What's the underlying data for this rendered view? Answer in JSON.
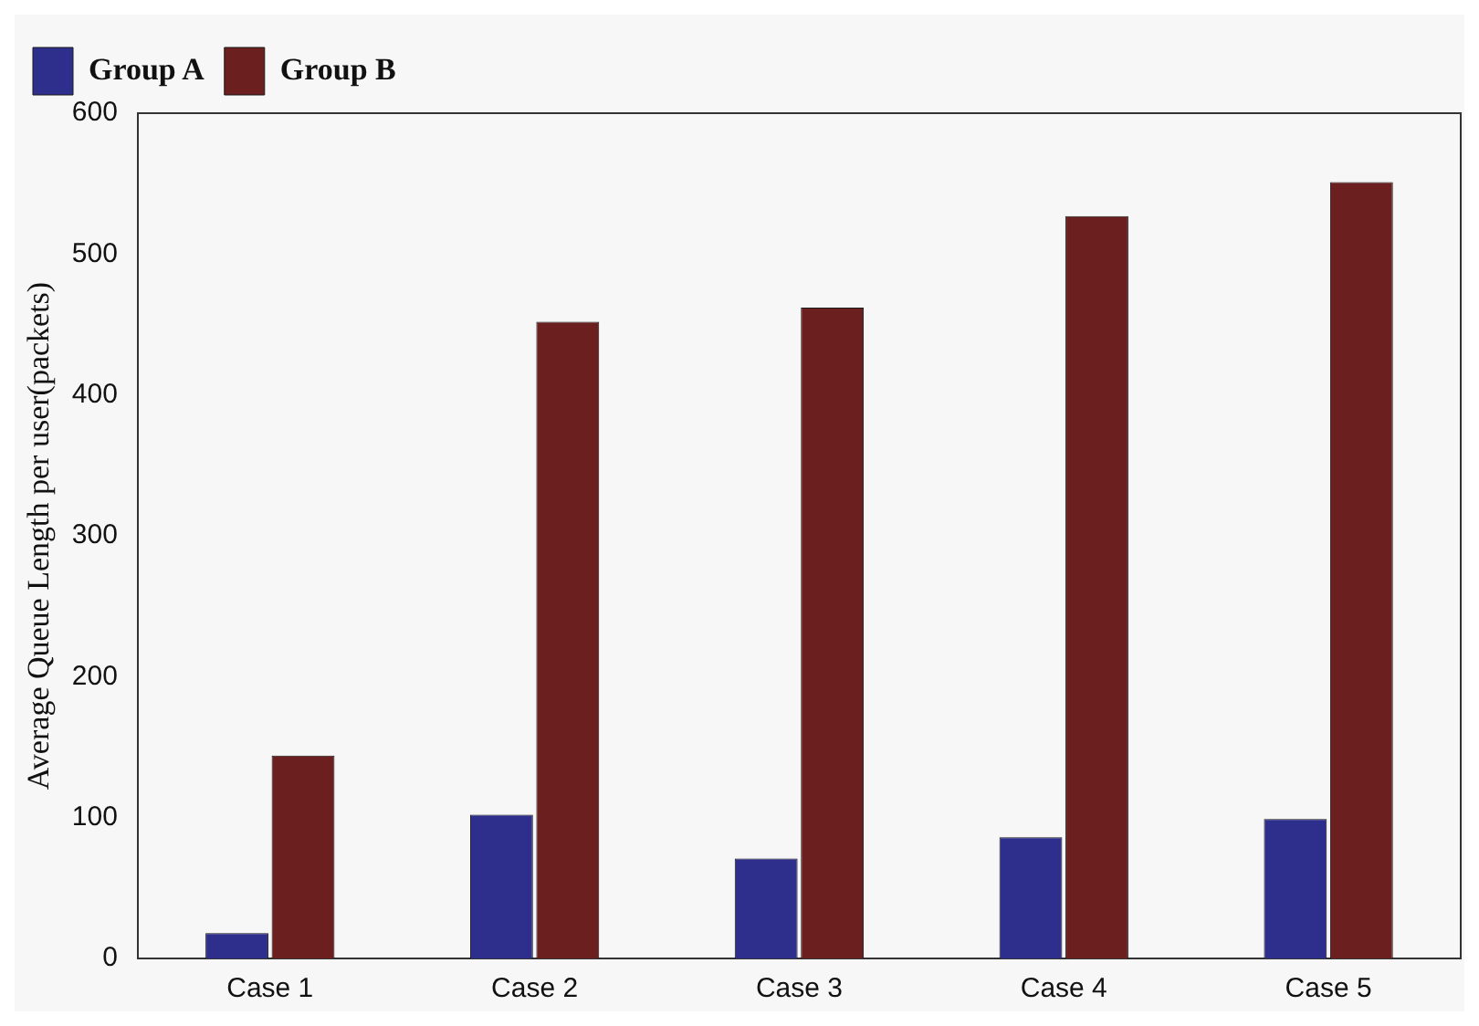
{
  "chart_data": {
    "type": "bar",
    "ylabel": "Average Queue Length per user(packets)",
    "categories": [
      "Case 1",
      "Case 2",
      "Case 3",
      "Case 4",
      "Case 5"
    ],
    "series": [
      {
        "name": "Group A",
        "color": "#2e2e8c",
        "values": [
          18,
          102,
          71,
          86,
          99
        ]
      },
      {
        "name": "Group B",
        "color": "#6b1f1f",
        "values": [
          144,
          452,
          462,
          527,
          551
        ]
      }
    ],
    "ylim": [
      0,
      600
    ],
    "yticks": [
      0,
      100,
      200,
      300,
      400,
      500,
      600
    ],
    "grid": false,
    "legend": "top left"
  }
}
